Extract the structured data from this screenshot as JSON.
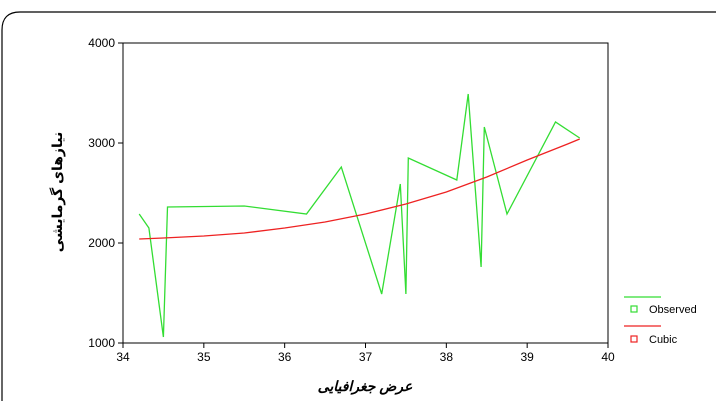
{
  "chart_data": {
    "type": "line",
    "title": "",
    "xlabel": "عرض جغرافیایی",
    "ylabel": "نیازهای گرمایشی",
    "xlim": [
      34,
      40
    ],
    "ylim": [
      1000,
      4000
    ],
    "grid": false,
    "legend_placement": "right",
    "x_ticks": [
      34,
      35,
      36,
      37,
      38,
      39,
      40
    ],
    "y_ticks": [
      1000,
      2000,
      3000,
      4000
    ],
    "series": [
      {
        "name": "Observed",
        "color": "#33dd33",
        "x": [
          34.2,
          34.32,
          34.5,
          34.55,
          35.5,
          36.27,
          36.7,
          37.2,
          37.43,
          37.5,
          37.53,
          38.13,
          38.27,
          38.43,
          38.47,
          38.75,
          39.35,
          39.65
        ],
        "y": [
          2290,
          2150,
          1060,
          2360,
          2370,
          2290,
          2760,
          1490,
          2590,
          1490,
          2850,
          2630,
          3490,
          1760,
          3160,
          2290,
          3210,
          3050
        ]
      },
      {
        "name": "Cubic",
        "color": "#ee2222",
        "x": [
          34.2,
          34.5,
          35,
          35.5,
          36,
          36.5,
          37,
          37.5,
          38,
          38.5,
          39,
          39.5,
          39.65
        ],
        "y": [
          2040,
          2050,
          2070,
          2100,
          2150,
          2210,
          2290,
          2390,
          2510,
          2660,
          2830,
          2990,
          3040
        ]
      }
    ]
  }
}
